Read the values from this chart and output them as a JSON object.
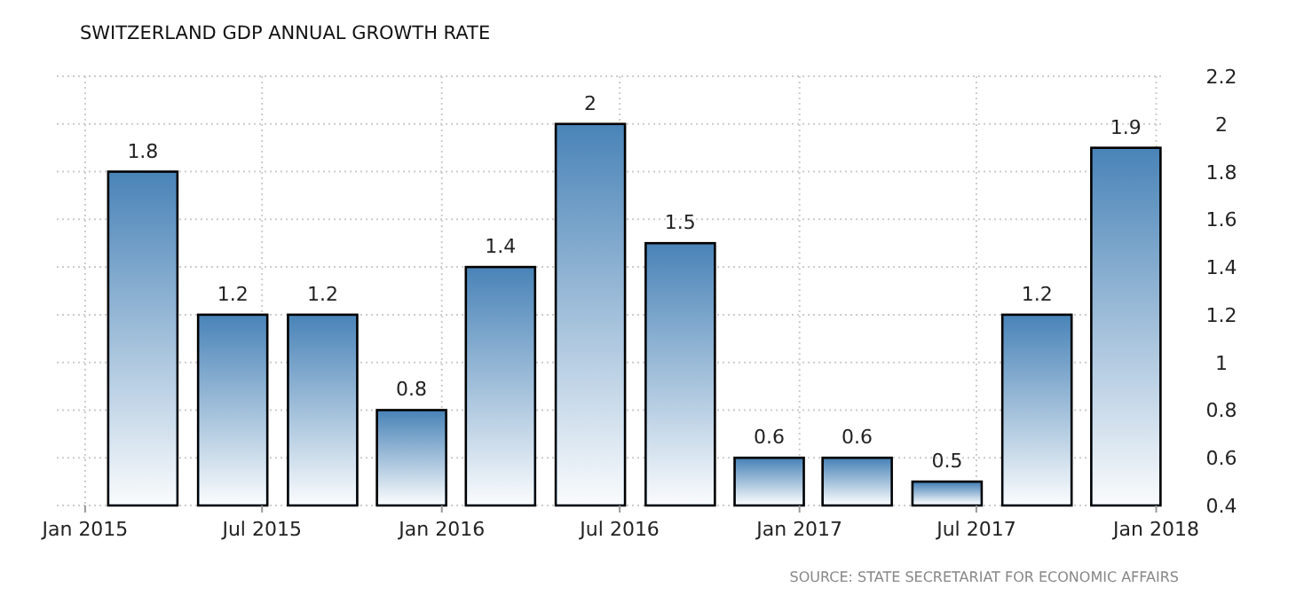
{
  "chart_data": {
    "type": "bar",
    "title": "SWITZERLAND GDP ANNUAL GROWTH RATE",
    "x": [
      "2015-03-01",
      "2015-06-01",
      "2015-09-01",
      "2015-12-01",
      "2016-03-01",
      "2016-06-01",
      "2016-09-01",
      "2016-12-01",
      "2017-03-01",
      "2017-06-01",
      "2017-09-01",
      "2017-12-01"
    ],
    "values": [
      1.8,
      1.2,
      1.2,
      0.8,
      1.4,
      2,
      1.5,
      0.6,
      0.6,
      0.5,
      1.2,
      1.9
    ],
    "color": "#4a84b8",
    "xlim": [
      "2014-12-03",
      "2018-01-06"
    ],
    "xticks": [
      {
        "value": "2015-01-01",
        "label": "Jan 2015"
      },
      {
        "value": "2015-07-01",
        "label": "Jul 2015"
      },
      {
        "value": "2016-01-01",
        "label": "Jan 2016"
      },
      {
        "value": "2016-07-01",
        "label": "Jul 2016"
      },
      {
        "value": "2017-01-01",
        "label": "Jan 2017"
      },
      {
        "value": "2017-07-01",
        "label": "Jul 2017"
      },
      {
        "value": "2018-01-01",
        "label": "Jan 2018"
      }
    ],
    "ylim": [
      0.4,
      2.2
    ],
    "yticks": [
      0.4,
      0.6,
      0.8,
      1,
      1.2,
      1.4,
      1.6,
      1.8,
      2,
      2.2
    ],
    "grid": true,
    "data_labels": true,
    "annotations": [
      "SOURCE: STATE SECRETARIAT FOR ECONOMIC AFFAIRS"
    ]
  }
}
